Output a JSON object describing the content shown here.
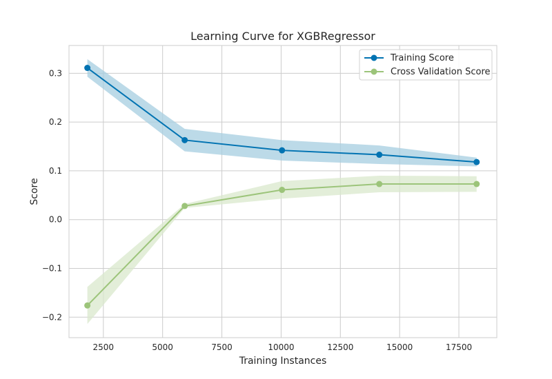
{
  "chart_data": {
    "type": "line",
    "title": "Learning Curve for XGBRegressor",
    "xlabel": "Training Instances",
    "ylabel": "Score",
    "xlim": [
      1050,
      19100
    ],
    "ylim": [
      -0.242,
      0.357
    ],
    "xticks": [
      2500,
      5000,
      7500,
      10000,
      12500,
      15000,
      17500
    ],
    "xtick_labels": [
      "2500",
      "5000",
      "7500",
      "10000",
      "12500",
      "15000",
      "17500"
    ],
    "yticks": [
      -0.2,
      -0.1,
      0.0,
      0.1,
      0.2,
      0.3
    ],
    "ytick_labels": [
      "−0.2",
      "−0.1",
      "0.0",
      "0.1",
      "0.2",
      "0.3"
    ],
    "grid": true,
    "legend_position": "top-right",
    "x": [
      1825,
      5931,
      10037,
      14143,
      18249
    ],
    "series": [
      {
        "name": "Training Score",
        "color": "#0173b2",
        "band_color": "#a6cee0",
        "values": [
          0.311,
          0.163,
          0.142,
          0.133,
          0.118
        ],
        "upper": [
          0.329,
          0.186,
          0.163,
          0.152,
          0.127
        ],
        "lower": [
          0.293,
          0.14,
          0.121,
          0.114,
          0.109
        ]
      },
      {
        "name": "Cross Validation Score",
        "color": "#9cc47a",
        "band_color": "#d9e8cc",
        "values": [
          -0.176,
          0.028,
          0.061,
          0.073,
          0.073
        ],
        "upper": [
          -0.138,
          0.032,
          0.079,
          0.09,
          0.089
        ],
        "lower": [
          -0.214,
          0.024,
          0.043,
          0.056,
          0.057
        ]
      }
    ]
  }
}
